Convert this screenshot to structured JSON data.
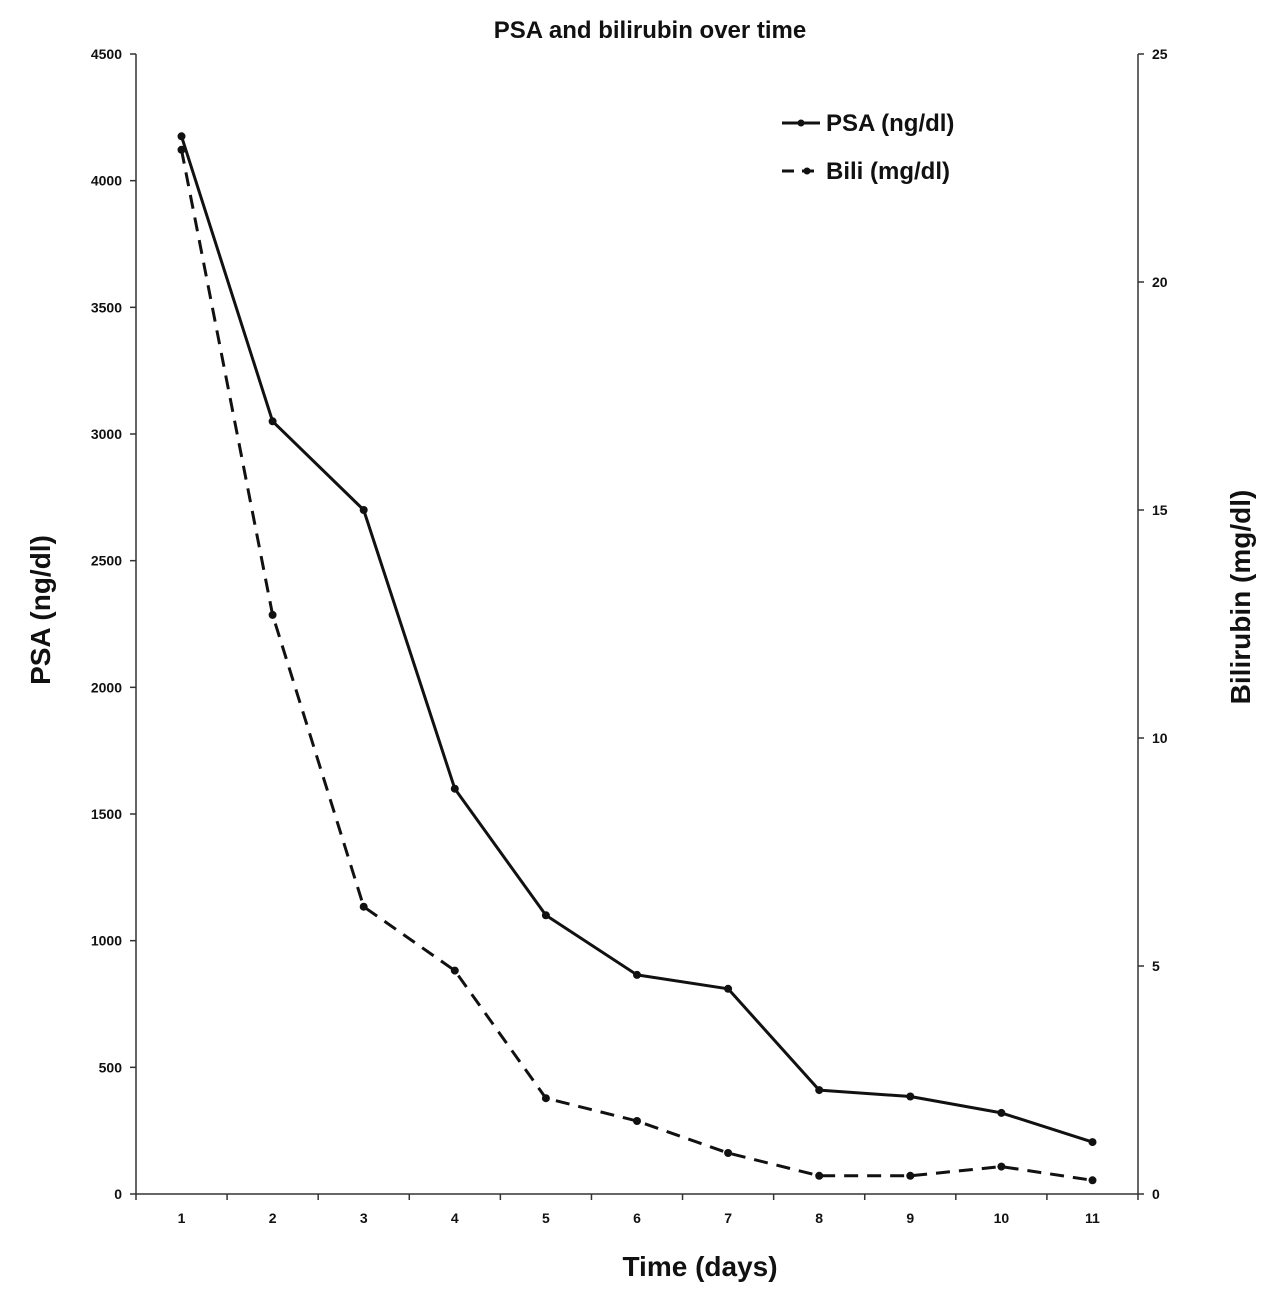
{
  "chart_data": {
    "type": "line",
    "title": "PSA and bilirubin over time",
    "xlabel": "Time (days)",
    "ylabel": "PSA (ng/dl)",
    "y2label": "Bilirubin (mg/dl)",
    "x": [
      1,
      2,
      3,
      4,
      5,
      6,
      7,
      8,
      9,
      10,
      11
    ],
    "xlim": [
      0.5,
      11.5
    ],
    "ylim": [
      0,
      4500
    ],
    "y2lim": [
      0,
      25
    ],
    "yticks": [
      0,
      500,
      1000,
      1500,
      2000,
      2500,
      3000,
      3500,
      4000,
      4500
    ],
    "y2ticks": [
      0,
      5,
      10,
      15,
      20,
      25
    ],
    "grid": false,
    "legend_position": "top-right",
    "series": [
      {
        "name": "PSA (ng/dl)",
        "axis": "left",
        "style": "solid",
        "values": [
          4175,
          3050,
          2700,
          1600,
          1100,
          865,
          810,
          410,
          385,
          320,
          205
        ]
      },
      {
        "name": "Bili (mg/dl)",
        "axis": "right",
        "style": "dashed",
        "values": [
          22.9,
          12.7,
          6.3,
          4.9,
          2.1,
          1.6,
          0.9,
          0.4,
          0.4,
          0.6,
          0.3
        ]
      }
    ],
    "colors": {
      "line": "#111111",
      "axis": "#333333"
    }
  }
}
